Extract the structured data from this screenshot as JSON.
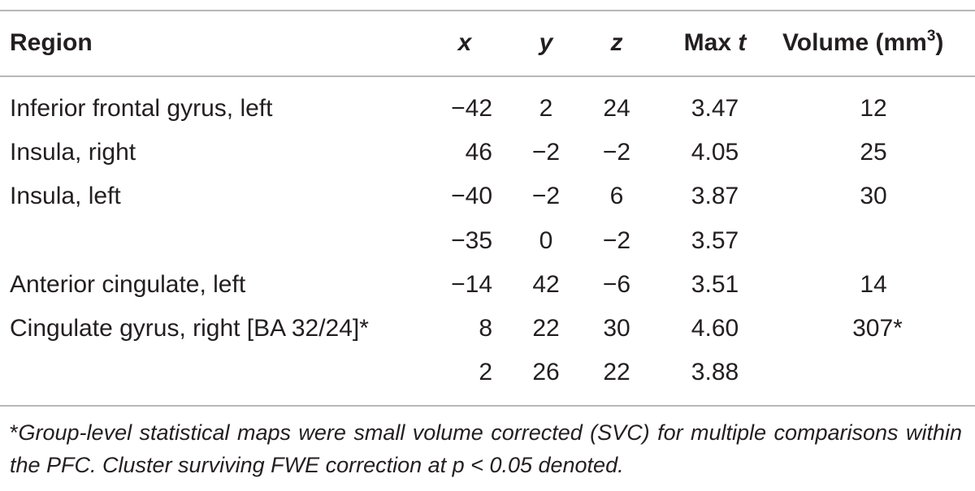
{
  "table": {
    "headers": {
      "region": "Region",
      "x": "x",
      "y": "y",
      "z": "z",
      "max_t_prefix": "Max ",
      "max_t_var": "t",
      "volume_prefix": "Volume (mm",
      "volume_sup": "3",
      "volume_suffix": ")"
    },
    "rows": [
      {
        "region": "Inferior frontal gyrus, left",
        "x": "−42",
        "y": "2",
        "z": "24",
        "max_t": "3.47",
        "volume": "12"
      },
      {
        "region": "Insula, right",
        "x": "46",
        "y": "−2",
        "z": "−2",
        "max_t": "4.05",
        "volume": "25"
      },
      {
        "region": "Insula, left",
        "x": "−40",
        "y": "−2",
        "z": "6",
        "max_t": "3.87",
        "volume": "30"
      },
      {
        "region": "",
        "x": "−35",
        "y": "0",
        "z": "−2",
        "max_t": "3.57",
        "volume": ""
      },
      {
        "region": "Anterior cingulate, left",
        "x": "−14",
        "y": "42",
        "z": "−6",
        "max_t": "3.51",
        "volume": "14"
      },
      {
        "region": "Cingulate gyrus, right [BA 32/24]*",
        "x": "8",
        "y": "22",
        "z": "30",
        "max_t": "4.60",
        "volume": "307*"
      },
      {
        "region": "",
        "x": "2",
        "y": "26",
        "z": "22",
        "max_t": "3.88",
        "volume": ""
      }
    ]
  },
  "footnote": {
    "marker": "*",
    "text": "Group-level statistical maps were small volume corrected (SVC) for multiple comparisons within the PFC. Cluster surviving FWE correction at p < 0.05 denoted."
  }
}
